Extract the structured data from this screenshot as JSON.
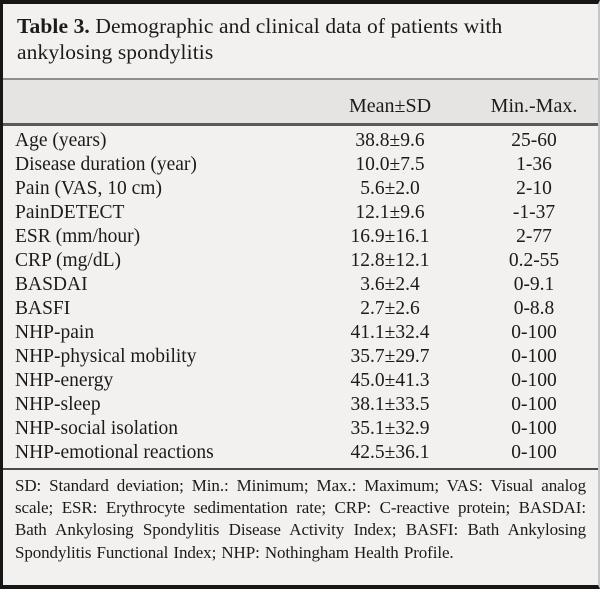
{
  "colors": {
    "page_background": "#f2f1ef",
    "header_band": "#e5e4e2",
    "frame": "#161616",
    "text": "#1b1b1b"
  },
  "title": {
    "label": "Table 3.",
    "caption": " Demographic and clinical data of patients with ankylosing spondylitis"
  },
  "table": {
    "columns": [
      "",
      "Mean±SD",
      "Min.-Max."
    ],
    "rows": [
      {
        "label": "Age (years)",
        "mean_sd": "38.8±9.6",
        "min_max": "25-60"
      },
      {
        "label": "Disease duration (year)",
        "mean_sd": "10.0±7.5",
        "min_max": "1-36"
      },
      {
        "label": "Pain (VAS, 10 cm)",
        "mean_sd": "5.6±2.0",
        "min_max": "2-10"
      },
      {
        "label": "PainDETECT",
        "mean_sd": "12.1±9.6",
        "min_max": "-1-37"
      },
      {
        "label": "ESR (mm/hour)",
        "mean_sd": "16.9±16.1",
        "min_max": "2-77"
      },
      {
        "label": "CRP (mg/dL)",
        "mean_sd": "12.8±12.1",
        "min_max": "0.2-55"
      },
      {
        "label": "BASDAI",
        "mean_sd": "3.6±2.4",
        "min_max": "0-9.1"
      },
      {
        "label": "BASFI",
        "mean_sd": "2.7±2.6",
        "min_max": "0-8.8"
      },
      {
        "label": "NHP-pain",
        "mean_sd": "41.1±32.4",
        "min_max": "0-100"
      },
      {
        "label": "NHP-physical mobility",
        "mean_sd": "35.7±29.7",
        "min_max": "0-100"
      },
      {
        "label": "NHP-energy",
        "mean_sd": "45.0±41.3",
        "min_max": "0-100"
      },
      {
        "label": "NHP-sleep",
        "mean_sd": "38.1±33.5",
        "min_max": "0-100"
      },
      {
        "label": "NHP-social isolation",
        "mean_sd": "35.1±32.9",
        "min_max": "0-100"
      },
      {
        "label": "NHP-emotional reactions",
        "mean_sd": "42.5±36.1",
        "min_max": "0-100"
      }
    ]
  },
  "footnote": "SD: Standard deviation; Min.: Minimum; Max.: Maximum; VAS: Visual analog scale; ESR: Erythrocyte sedimentation rate; CRP: C-reactive protein; BASDAI: Bath Ankylosing Spondylitis Disease Activity Index; BASFI: Bath Ankylosing Spondylitis Functional Index; NHP: Nothingham Health Profile."
}
